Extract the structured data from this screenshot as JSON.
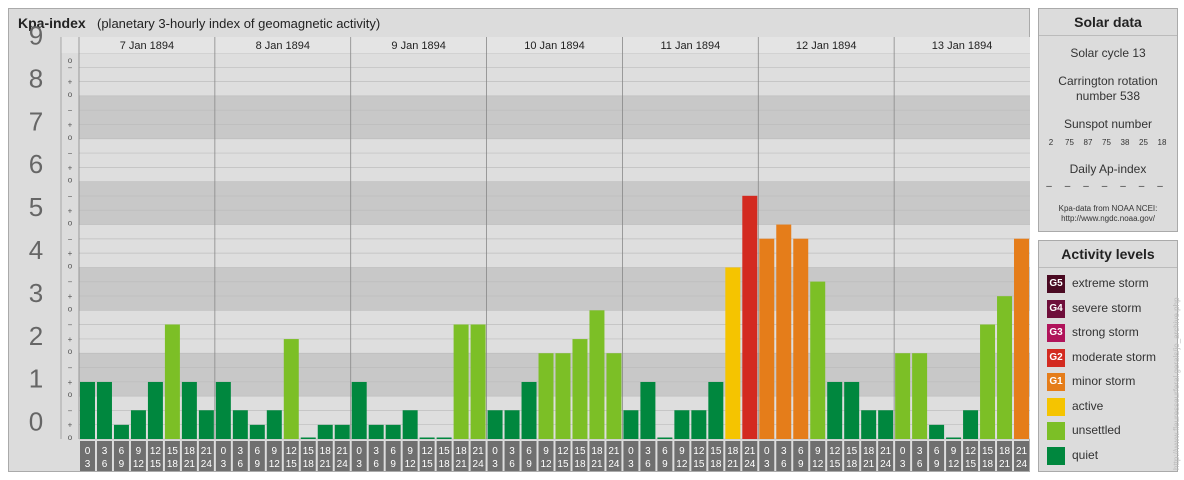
{
  "header": {
    "title": "Kpa-index",
    "subtitle": "(planetary 3-hourly index of geomagnetic activity)"
  },
  "chart_data": {
    "type": "bar",
    "title": "Kpa-index",
    "subtitle": "(planetary 3-hourly index of geomagnetic activity)",
    "ylim": [
      0,
      9
    ],
    "y_ticks": [
      "0",
      "1",
      "2",
      "3",
      "4",
      "5",
      "6",
      "7",
      "8",
      "9"
    ],
    "y_subticks": [
      "o",
      "+",
      "−"
    ],
    "days": [
      "7 Jan 1894",
      "8 Jan 1894",
      "9 Jan 1894",
      "10 Jan 1894",
      "11 Jan 1894",
      "12 Jan 1894",
      "13 Jan 1894"
    ],
    "interval_starts": [
      "0",
      "3",
      "6",
      "9",
      "12",
      "15",
      "18",
      "21"
    ],
    "interval_ends": [
      "3",
      "6",
      "9",
      "12",
      "15",
      "18",
      "21",
      "24"
    ],
    "values": [
      [
        1.33,
        1.33,
        0.33,
        0.67,
        1.33,
        2.67,
        1.33,
        0.67
      ],
      [
        1.33,
        0.67,
        0.33,
        0.67,
        2.33,
        0.0,
        0.33,
        0.33
      ],
      [
        1.33,
        0.33,
        0.33,
        0.67,
        0.0,
        0.0,
        2.67,
        2.67
      ],
      [
        0.67,
        0.67,
        1.33,
        2.0,
        2.0,
        2.33,
        3.0,
        2.0
      ],
      [
        0.67,
        1.33,
        0.0,
        0.67,
        0.67,
        1.33,
        4.0,
        5.67
      ],
      [
        4.67,
        5.0,
        4.67,
        3.67,
        1.33,
        1.33,
        0.67,
        0.67
      ],
      [
        2.0,
        2.0,
        0.33,
        0.0,
        0.67,
        2.67,
        3.33,
        4.67
      ]
    ],
    "color_scale": [
      {
        "min": 0,
        "max": 2,
        "color": "#00873e",
        "level": "quiet"
      },
      {
        "min": 2,
        "max": 4,
        "color": "#7cbf26",
        "level": "unsettled"
      },
      {
        "min": 4,
        "max": 4.5,
        "color": "#f5c400",
        "level": "active"
      },
      {
        "min": 4.5,
        "max": 5.5,
        "color": "#e57d1a",
        "level": "minor storm"
      },
      {
        "min": 5.5,
        "max": 6.5,
        "color": "#d32a20",
        "level": "moderate storm"
      },
      {
        "min": 6.5,
        "max": 7.5,
        "color": "#b0135a",
        "level": "strong storm"
      },
      {
        "min": 7.5,
        "max": 8.5,
        "color": "#6e0e3a",
        "level": "severe storm"
      },
      {
        "min": 8.5,
        "max": 9.1,
        "color": "#4a0a22",
        "level": "extreme storm"
      }
    ],
    "band_colors": [
      "#c8c8c8",
      "#dedede"
    ]
  },
  "solar": {
    "title": "Solar data",
    "cycle": "Solar cycle 13",
    "carrington_line1": "Carrington rotation",
    "carrington_line2": "number 538",
    "sunspot_title": "Sunspot number",
    "sunspot_values": [
      "2",
      "75",
      "87",
      "75",
      "38",
      "25",
      "18"
    ],
    "ap_title": "Daily Ap-index",
    "ap_values": [
      "–",
      "–",
      "–",
      "–",
      "–",
      "–",
      "–"
    ],
    "source_line1": "Kpa-data from NOAA NCEI:",
    "source_line2": "http://www.ngdc.noaa.gov/"
  },
  "levels": {
    "title": "Activity levels",
    "items": [
      {
        "code": "G5",
        "label": "extreme storm",
        "color": "#4a0a22"
      },
      {
        "code": "G4",
        "label": "severe storm",
        "color": "#6e0e3a"
      },
      {
        "code": "G3",
        "label": "strong storm",
        "color": "#b0135a"
      },
      {
        "code": "G2",
        "label": "moderate storm",
        "color": "#d32a20"
      },
      {
        "code": "G1",
        "label": "minor storm",
        "color": "#e57d1a"
      },
      {
        "code": "",
        "label": "active",
        "color": "#f5c400"
      },
      {
        "code": "",
        "label": "unsettled",
        "color": "#7cbf26"
      },
      {
        "code": "",
        "label": "quiet",
        "color": "#00873e"
      }
    ]
  },
  "credit": "http://www.fleuresseurferal.gerals/jo_archive.php"
}
